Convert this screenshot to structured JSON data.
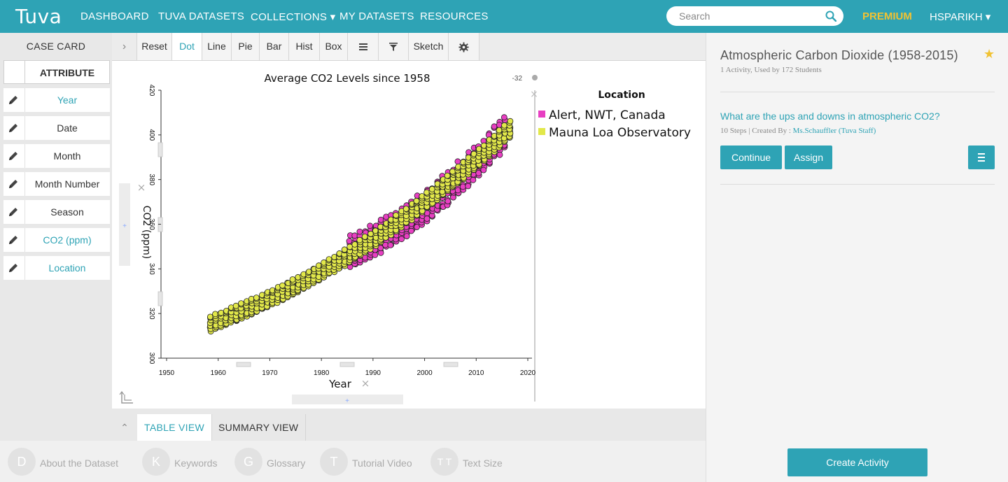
{
  "nav": {
    "logo": "Tuva",
    "items": [
      "DASHBOARD",
      "TUVA DATASETS",
      "COLLECTIONS ▾",
      "MY DATASETS",
      "RESOURCES"
    ],
    "search_placeholder": "Search",
    "premium": "PREMIUM",
    "user": "HSPARIKH ▾"
  },
  "case_card": {
    "title": "CASE CARD",
    "header": "ATTRIBUTE",
    "attributes": [
      {
        "label": "Year",
        "active": true
      },
      {
        "label": "Date",
        "active": false
      },
      {
        "label": "Month",
        "active": false
      },
      {
        "label": "Month Number",
        "active": false
      },
      {
        "label": "Season",
        "active": false
      },
      {
        "label": "CO2 (ppm)",
        "active": true
      },
      {
        "label": "Location",
        "active": true
      }
    ]
  },
  "toolbar": {
    "buttons": [
      "Reset",
      "Dot",
      "Line",
      "Pie",
      "Bar",
      "Hist",
      "Box"
    ],
    "active": "Dot",
    "sketch": "Sketch"
  },
  "views": {
    "tabs": [
      "TABLE VIEW",
      "SUMMARY VIEW"
    ],
    "active": "TABLE VIEW"
  },
  "footer": {
    "items": [
      {
        "letter": "D",
        "label": "About the Dataset"
      },
      {
        "letter": "K",
        "label": "Keywords"
      },
      {
        "letter": "G",
        "label": "Glossary"
      },
      {
        "letter": "T",
        "label": "Tutorial Video"
      },
      {
        "letter": "T T",
        "label": "Text Size"
      }
    ]
  },
  "activity": {
    "title": "Atmospheric Carbon Dioxide (1958-2015)",
    "subtitle": "1 Activity, Used by 172 Students",
    "question": "What are the ups and downs in atmospheric CO2?",
    "steps": "10 Steps | Created By : ",
    "author": "Ms.Schauffler (Tuva Staff)",
    "continue": "Continue",
    "assign": "Assign",
    "create": "Create Activity"
  },
  "colors": {
    "accent": "#2ea3b5",
    "premium": "#f1c232",
    "alert": "#e83fc2",
    "mauna": "#e2e84a"
  },
  "chart_data": {
    "type": "scatter",
    "title": "Average CO2 Levels since 1958",
    "xlabel": "Year",
    "ylabel": "CO2 (ppm)",
    "xlim": [
      1950,
      2020
    ],
    "ylim": [
      300,
      420
    ],
    "x_ticks": [
      "1950",
      "1960",
      "1970",
      "1980",
      "1990",
      "2000",
      "2010",
      "2020"
    ],
    "y_ticks": [
      "300",
      "320",
      "340",
      "360",
      "380",
      "400",
      "420"
    ],
    "legend_title": "Location",
    "corner_value": "-32",
    "series": [
      {
        "name": "Alert, NWT, Canada",
        "color": "#e83fc2",
        "x_range": [
          1985,
          2015
        ],
        "y_start": 347,
        "y_end": 402,
        "seasonal_amplitude": 6
      },
      {
        "name": "Mauna Loa Observatory",
        "color": "#e2e84a",
        "x_range": [
          1958,
          2016
        ],
        "y_start": 315,
        "y_end": 403,
        "seasonal_amplitude": 3
      }
    ]
  }
}
